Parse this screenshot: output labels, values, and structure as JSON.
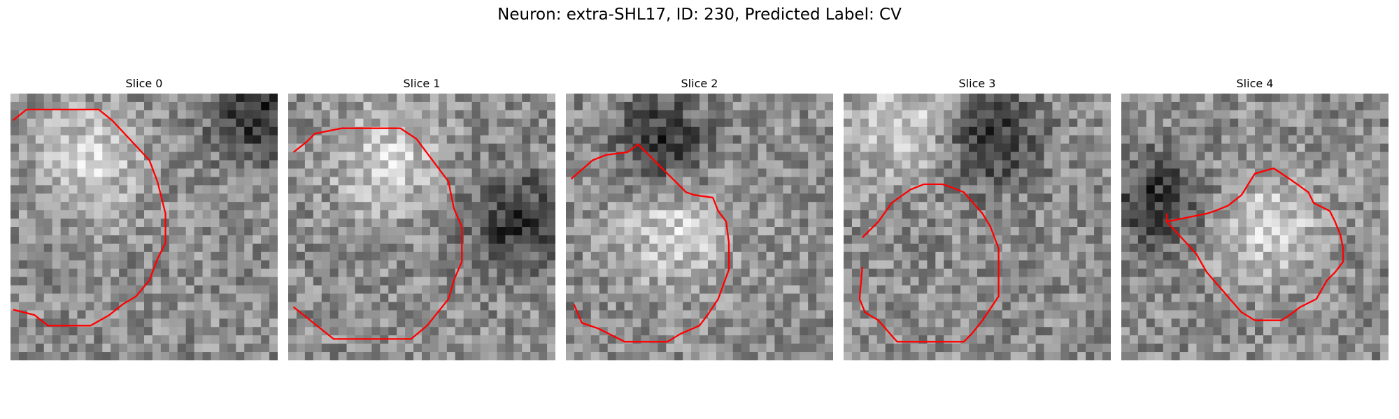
{
  "figure": {
    "title": "Neuron: extra-SHL17, ID: 230, Predicted Label: CV"
  },
  "panels": [
    {
      "title": "Slice 0",
      "seed": 11,
      "bright_center": [
        0.3,
        0.25
      ],
      "dark_center": [
        0.92,
        0.08
      ],
      "contour": [
        [
          0.01,
          0.1
        ],
        [
          0.06,
          0.06
        ],
        [
          0.33,
          0.06
        ],
        [
          0.38,
          0.1
        ],
        [
          0.52,
          0.25
        ],
        [
          0.55,
          0.33
        ],
        [
          0.58,
          0.45
        ],
        [
          0.58,
          0.56
        ],
        [
          0.55,
          0.62
        ],
        [
          0.52,
          0.7
        ],
        [
          0.47,
          0.76
        ],
        [
          0.42,
          0.79
        ],
        [
          0.37,
          0.83
        ],
        [
          0.3,
          0.87
        ],
        [
          0.14,
          0.87
        ],
        [
          0.09,
          0.83
        ],
        [
          0.01,
          0.81
        ]
      ]
    },
    {
      "title": "Slice 1",
      "seed": 23,
      "bright_center": [
        0.37,
        0.25
      ],
      "dark_center": [
        0.85,
        0.48
      ],
      "contour": [
        [
          0.02,
          0.22
        ],
        [
          0.07,
          0.18
        ],
        [
          0.1,
          0.15
        ],
        [
          0.2,
          0.13
        ],
        [
          0.42,
          0.13
        ],
        [
          0.48,
          0.17
        ],
        [
          0.6,
          0.33
        ],
        [
          0.62,
          0.43
        ],
        [
          0.65,
          0.5
        ],
        [
          0.65,
          0.63
        ],
        [
          0.62,
          0.7
        ],
        [
          0.6,
          0.77
        ],
        [
          0.52,
          0.87
        ],
        [
          0.46,
          0.92
        ],
        [
          0.17,
          0.92
        ],
        [
          0.02,
          0.8
        ]
      ]
    },
    {
      "title": "Slice 2",
      "seed": 37,
      "bright_center": [
        0.4,
        0.52
      ],
      "dark_center": [
        0.36,
        0.18
      ],
      "contour": [
        [
          0.02,
          0.32
        ],
        [
          0.1,
          0.25
        ],
        [
          0.15,
          0.23
        ],
        [
          0.23,
          0.22
        ],
        [
          0.27,
          0.19
        ],
        [
          0.45,
          0.37
        ],
        [
          0.48,
          0.38
        ],
        [
          0.55,
          0.39
        ],
        [
          0.57,
          0.44
        ],
        [
          0.6,
          0.48
        ],
        [
          0.61,
          0.56
        ],
        [
          0.61,
          0.66
        ],
        [
          0.57,
          0.77
        ],
        [
          0.53,
          0.83
        ],
        [
          0.5,
          0.87
        ],
        [
          0.43,
          0.9
        ],
        [
          0.38,
          0.93
        ],
        [
          0.22,
          0.93
        ],
        [
          0.12,
          0.88
        ],
        [
          0.06,
          0.86
        ],
        [
          0.03,
          0.79
        ]
      ]
    },
    {
      "title": "Slice 3",
      "seed": 41,
      "bright_center": [
        0.22,
        0.12
      ],
      "dark_center": [
        0.55,
        0.17
      ],
      "contour": [
        [
          0.07,
          0.54
        ],
        [
          0.13,
          0.48
        ],
        [
          0.18,
          0.41
        ],
        [
          0.25,
          0.36
        ],
        [
          0.3,
          0.34
        ],
        [
          0.37,
          0.34
        ],
        [
          0.4,
          0.35
        ],
        [
          0.45,
          0.37
        ],
        [
          0.52,
          0.45
        ],
        [
          0.55,
          0.5
        ],
        [
          0.58,
          0.58
        ],
        [
          0.58,
          0.76
        ],
        [
          0.52,
          0.85
        ],
        [
          0.48,
          0.9
        ],
        [
          0.45,
          0.93
        ],
        [
          0.2,
          0.93
        ],
        [
          0.13,
          0.85
        ],
        [
          0.08,
          0.82
        ],
        [
          0.06,
          0.77
        ],
        [
          0.07,
          0.65
        ]
      ]
    },
    {
      "title": "Slice 4",
      "seed": 53,
      "bright_center": [
        0.55,
        0.5
      ],
      "dark_center": [
        0.13,
        0.4
      ],
      "contour": [
        [
          0.17,
          0.45
        ],
        [
          0.17,
          0.48
        ],
        [
          0.32,
          0.45
        ],
        [
          0.35,
          0.44
        ],
        [
          0.4,
          0.42
        ],
        [
          0.45,
          0.38
        ],
        [
          0.5,
          0.3
        ],
        [
          0.57,
          0.28
        ],
        [
          0.63,
          0.32
        ],
        [
          0.7,
          0.37
        ],
        [
          0.72,
          0.41
        ],
        [
          0.78,
          0.44
        ],
        [
          0.8,
          0.48
        ],
        [
          0.82,
          0.53
        ],
        [
          0.83,
          0.58
        ],
        [
          0.83,
          0.63
        ],
        [
          0.8,
          0.67
        ],
        [
          0.77,
          0.7
        ],
        [
          0.73,
          0.77
        ],
        [
          0.67,
          0.8
        ],
        [
          0.63,
          0.83
        ],
        [
          0.6,
          0.85
        ],
        [
          0.5,
          0.85
        ],
        [
          0.45,
          0.82
        ],
        [
          0.32,
          0.67
        ],
        [
          0.28,
          0.6
        ],
        [
          0.17,
          0.48
        ]
      ]
    }
  ],
  "colors": {
    "contour": "#ff0000"
  }
}
